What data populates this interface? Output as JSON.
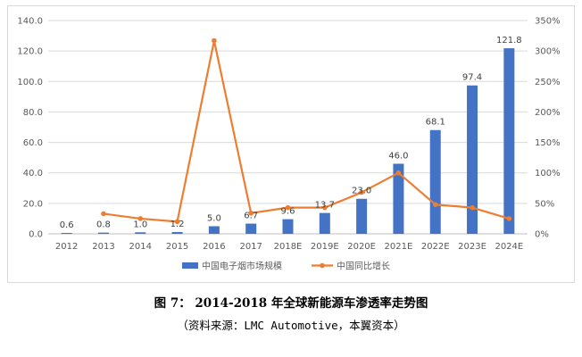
{
  "chart_data": {
    "type": "bar+line",
    "categories": [
      "2012",
      "2013",
      "2014",
      "2015",
      "2016",
      "2017",
      "2018E",
      "2019E",
      "2020E",
      "2021E",
      "2022E",
      "2023E",
      "2024E"
    ],
    "series": [
      {
        "name": "中国电子烟市场规模",
        "type": "bar",
        "axis": "left",
        "color": "#4472C4",
        "values": [
          0.6,
          0.8,
          1.0,
          1.2,
          5.0,
          6.7,
          9.6,
          13.7,
          23.0,
          46.0,
          68.1,
          97.4,
          121.8
        ],
        "labels": [
          "0.6",
          "0.8",
          "1.0",
          "1.2",
          "5.0",
          "6.7",
          "9.6",
          "13.7",
          "23.0",
          "46.0",
          "68.1",
          "97.4",
          "121.8"
        ]
      },
      {
        "name": "中国同比增长",
        "type": "line",
        "axis": "right",
        "color": "#ED7D31",
        "values": [
          null,
          33,
          25,
          20,
          317,
          34,
          43,
          43,
          68,
          100,
          48,
          43,
          25
        ]
      }
    ],
    "y_left": {
      "min": 0,
      "max": 140,
      "ticks": [
        "0.0",
        "20.0",
        "40.0",
        "60.0",
        "80.0",
        "100.0",
        "120.0",
        "140.0"
      ]
    },
    "y_right": {
      "min": 0,
      "max": 350,
      "ticks": [
        "0%",
        "50%",
        "100%",
        "150%",
        "200%",
        "250%",
        "300%",
        "350%"
      ]
    },
    "legend_position": "bottom"
  },
  "caption": "图 7： 2014-2018 年全球新能源车渗透率走势图",
  "source": "（资料来源：LMC Automotive，本翼资本）"
}
